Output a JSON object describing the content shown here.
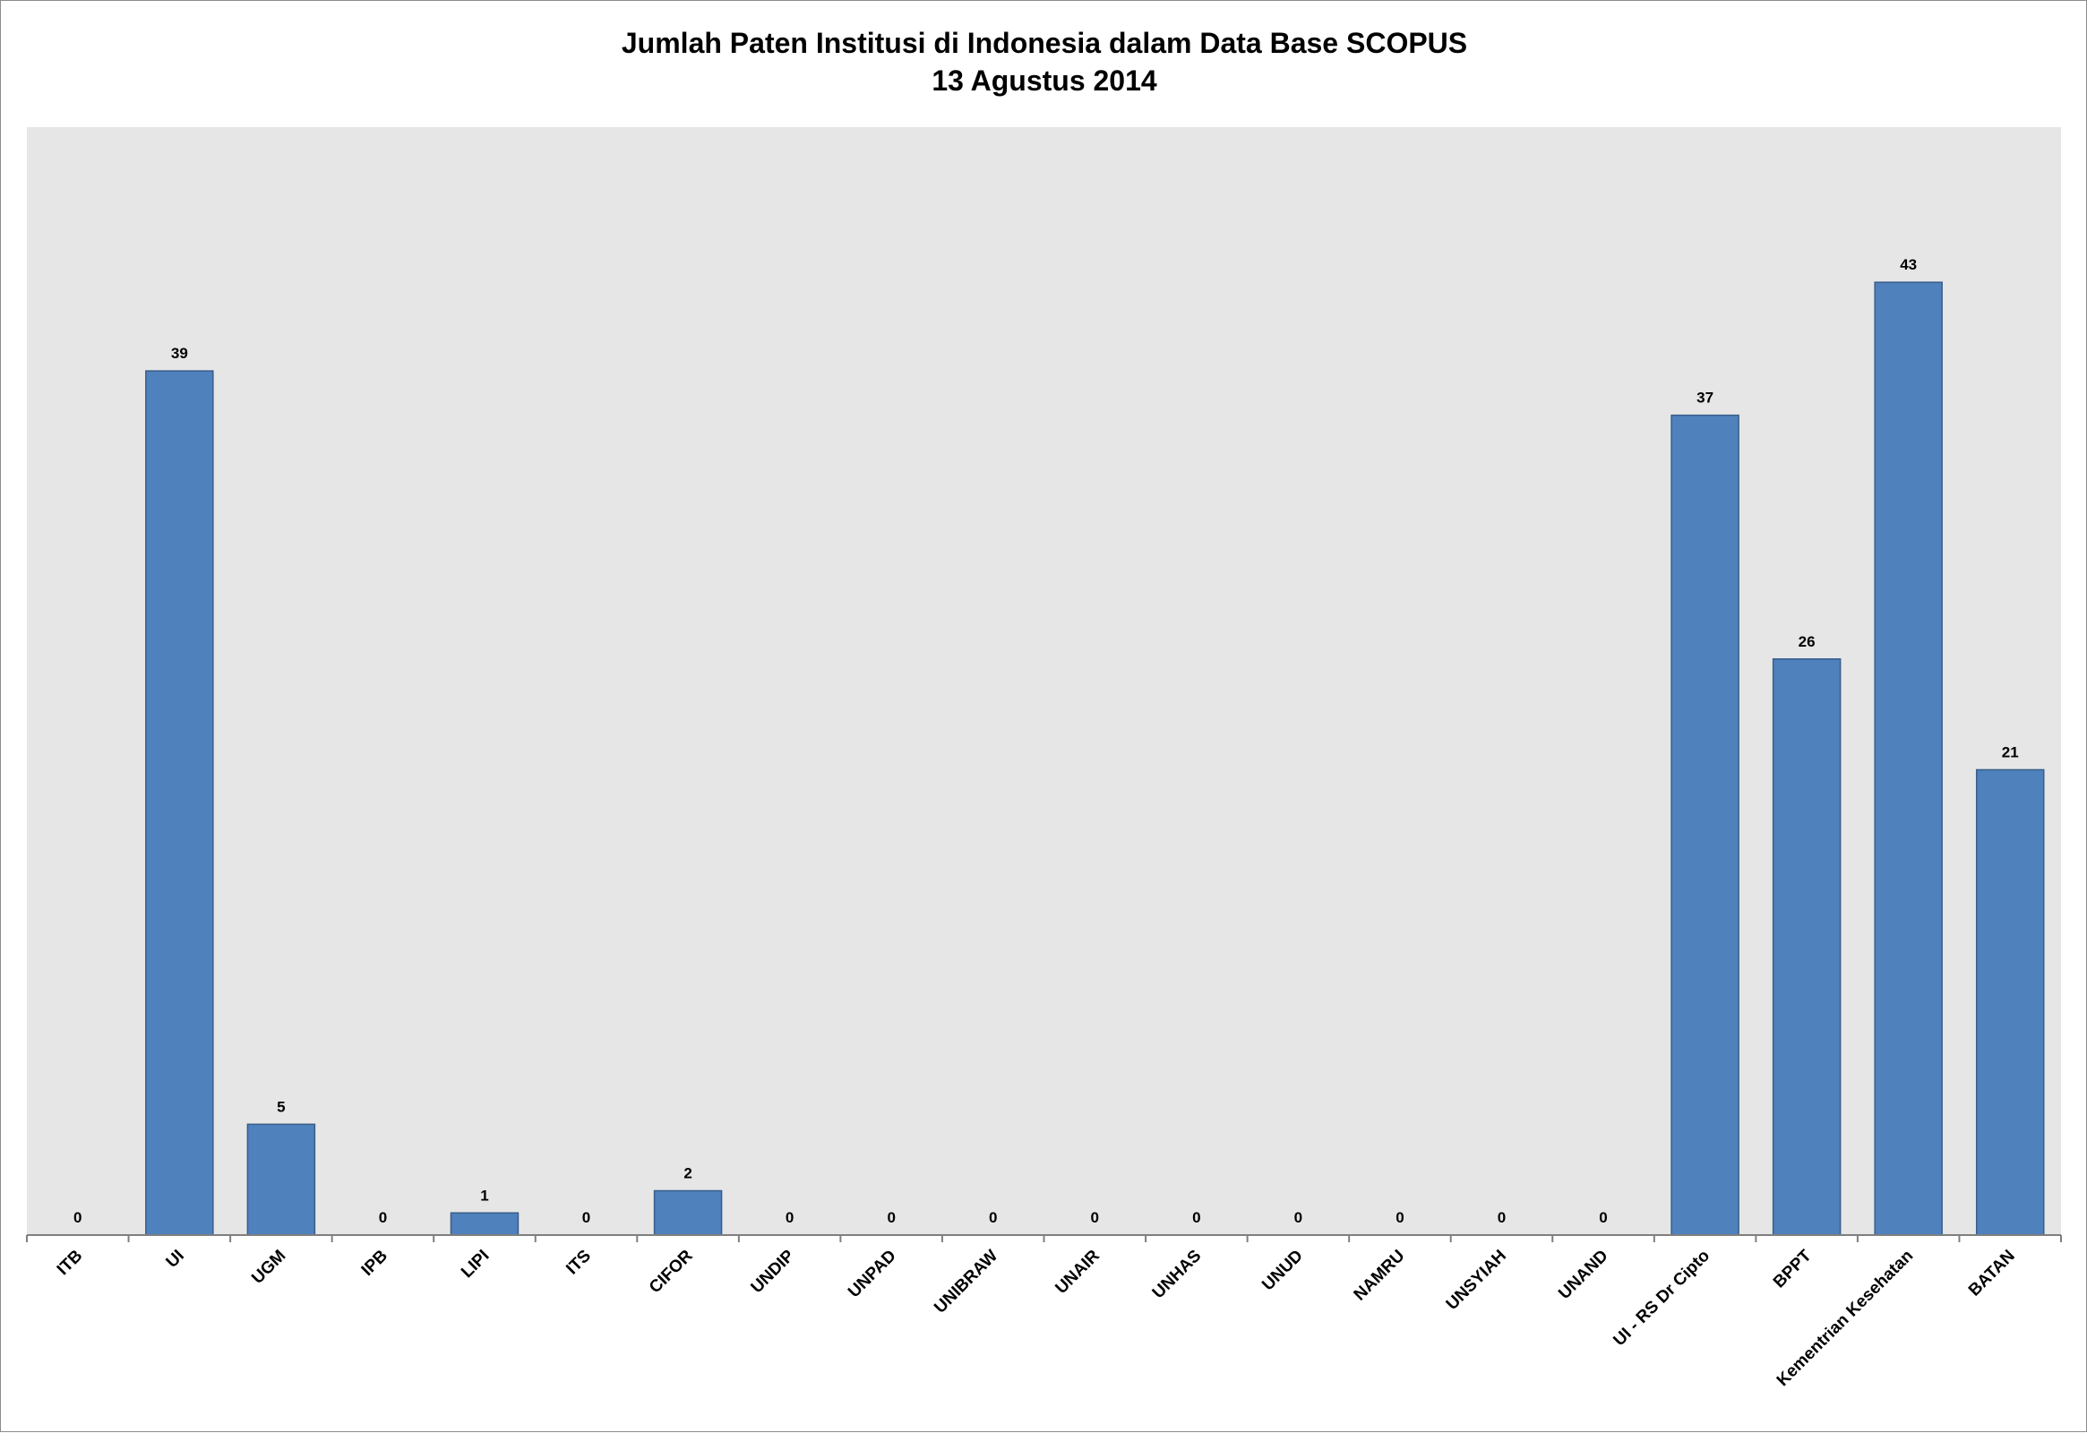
{
  "chart_data": {
    "type": "bar",
    "title": "Jumlah Paten Institusi di Indonesia dalam Data Base SCOPUS",
    "subtitle": "13 Agustus 2014",
    "categories": [
      "ITB",
      "UI",
      "UGM",
      "IPB",
      "LIPI",
      "ITS",
      "CIFOR",
      "UNDIP",
      "UNPAD",
      "UNIBRAW",
      "UNAIR",
      "UNHAS",
      "UNUD",
      "NAMRU",
      "UNSYIAH",
      "UNAND",
      "UI - RS Dr Cipto",
      "BPPT",
      "Kementrian Kesehatan",
      "BATAN"
    ],
    "values": [
      0,
      39,
      5,
      0,
      1,
      0,
      2,
      0,
      0,
      0,
      0,
      0,
      0,
      0,
      0,
      0,
      37,
      26,
      43,
      21
    ],
    "data_labels": true,
    "xlabel": "",
    "ylabel": "",
    "ylim": [
      0,
      50
    ],
    "grid": false,
    "legend": "none",
    "bar_color": "#4f81bd",
    "bar_edge_color": "#385d8a",
    "plot_background": "#e6e6e6"
  }
}
